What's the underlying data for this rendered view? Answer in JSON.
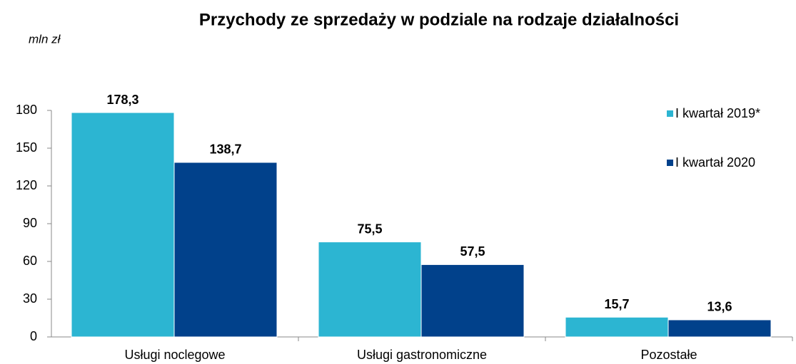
{
  "chart_data": {
    "type": "bar",
    "title": "Przychody ze sprzedaży w podziale na rodzaje działalności",
    "y_label": "mln zł",
    "categories": [
      "Usługi noclegowe",
      "Usługi gastronomiczne",
      "Pozostałe"
    ],
    "series": [
      {
        "name": "I kwartał 2019*",
        "color": "#2cb5d2",
        "values": [
          178.3,
          75.5,
          15.7
        ],
        "value_labels": [
          "178,3",
          "75,5",
          "15,7"
        ]
      },
      {
        "name": "I kwartał 2020",
        "color": "#01418b",
        "values": [
          138.7,
          57.5,
          13.6
        ],
        "value_labels": [
          "138,7",
          "57,5",
          "13,6"
        ]
      }
    ],
    "ylim": [
      0,
      180
    ],
    "yticks": [
      0,
      30,
      60,
      90,
      120,
      150,
      180
    ],
    "grid": false,
    "legend": "top-right"
  }
}
